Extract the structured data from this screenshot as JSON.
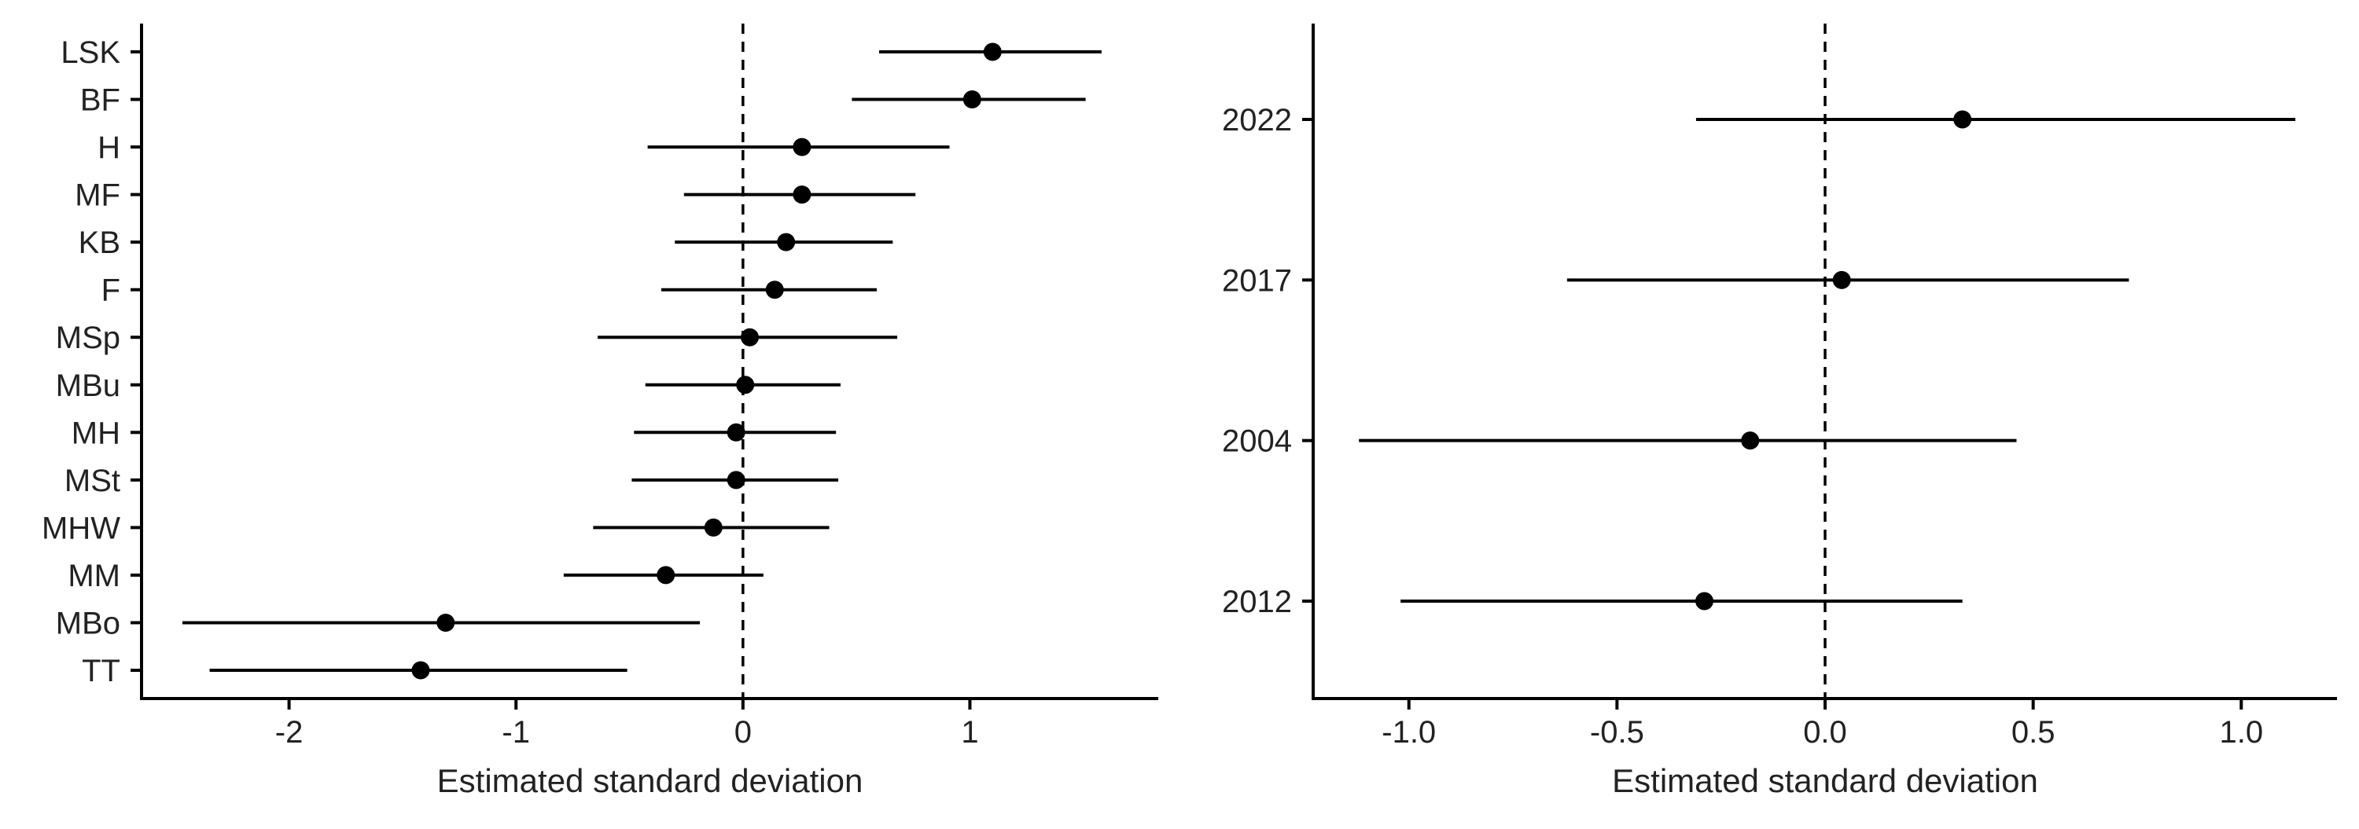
{
  "chart_data": [
    {
      "type": "forest",
      "xlabel": "Estimated standard deviation",
      "xlim": [
        -2.65,
        1.83
      ],
      "xticks": [
        -2,
        -1,
        0,
        1
      ],
      "xtick_labels": [
        "-2",
        "-1",
        "0",
        "1"
      ],
      "reference_line": 0,
      "grid": false,
      "rows": [
        {
          "label": "LSK",
          "estimate": 1.1,
          "lower": 0.6,
          "upper": 1.58
        },
        {
          "label": "BF",
          "estimate": 1.01,
          "lower": 0.48,
          "upper": 1.51
        },
        {
          "label": "H",
          "estimate": 0.26,
          "lower": -0.42,
          "upper": 0.91
        },
        {
          "label": "MF",
          "estimate": 0.26,
          "lower": -0.26,
          "upper": 0.76
        },
        {
          "label": "KB",
          "estimate": 0.19,
          "lower": -0.3,
          "upper": 0.66
        },
        {
          "label": "F",
          "estimate": 0.14,
          "lower": -0.36,
          "upper": 0.59
        },
        {
          "label": "MSp",
          "estimate": 0.03,
          "lower": -0.64,
          "upper": 0.68
        },
        {
          "label": "MBu",
          "estimate": 0.01,
          "lower": -0.43,
          "upper": 0.43
        },
        {
          "label": "MH",
          "estimate": -0.03,
          "lower": -0.48,
          "upper": 0.41
        },
        {
          "label": "MSt",
          "estimate": -0.03,
          "lower": -0.49,
          "upper": 0.42
        },
        {
          "label": "MHW",
          "estimate": -0.13,
          "lower": -0.66,
          "upper": 0.38
        },
        {
          "label": "MM",
          "estimate": -0.34,
          "lower": -0.79,
          "upper": 0.09
        },
        {
          "label": "MBo",
          "estimate": -1.31,
          "lower": -2.47,
          "upper": -0.19
        },
        {
          "label": "TT",
          "estimate": -1.42,
          "lower": -2.35,
          "upper": -0.51
        }
      ]
    },
    {
      "type": "forest",
      "xlabel": "Estimated standard deviation",
      "xlim": [
        -1.23,
        1.23
      ],
      "xticks": [
        -1.0,
        -0.5,
        0.0,
        0.5,
        1.0
      ],
      "xtick_labels": [
        "-1.0",
        "-0.5",
        "0.0",
        "0.5",
        "1.0"
      ],
      "reference_line": 0,
      "grid": false,
      "rows": [
        {
          "label": "2022",
          "estimate": 0.33,
          "lower": -0.31,
          "upper": 1.13
        },
        {
          "label": "2017",
          "estimate": 0.04,
          "lower": -0.62,
          "upper": 0.73
        },
        {
          "label": "2004",
          "estimate": -0.18,
          "lower": -1.12,
          "upper": 0.46
        },
        {
          "label": "2012",
          "estimate": -0.29,
          "lower": -1.02,
          "upper": 0.33
        }
      ]
    }
  ]
}
